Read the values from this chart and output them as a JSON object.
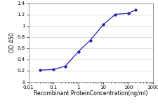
{
  "x": [
    0.03,
    0.1,
    0.3,
    1,
    3,
    10,
    30,
    100,
    200
  ],
  "y": [
    0.21,
    0.22,
    0.28,
    0.54,
    0.74,
    1.02,
    1.2,
    1.22,
    1.28
  ],
  "line_color": "#2222aa",
  "marker_color": "#2222aa",
  "marker_style": "o",
  "marker_size": 2.5,
  "marker_edge_width": 0.5,
  "line_width": 0.9,
  "xlabel": "Recombinant ProteinConcentration(ng/ml)",
  "ylabel": "OD 450",
  "xlim_log": [
    0.01,
    1000
  ],
  "ylim": [
    0,
    1.4
  ],
  "yticks": [
    0,
    0.2,
    0.4,
    0.6,
    0.8,
    1.0,
    1.2,
    1.4
  ],
  "ytick_labels": [
    "0",
    "0.2",
    "0.4",
    "0.6",
    "0.8",
    "1",
    "1.2",
    "1.4"
  ],
  "xticks": [
    0.01,
    0.1,
    1,
    10,
    100,
    1000
  ],
  "xtick_labels": [
    "0.01",
    "0.1",
    "1",
    "10",
    "100",
    "1000"
  ],
  "background_color": "#ffffff",
  "grid_color": "#d0d0d0",
  "axis_fontsize": 5.5,
  "tick_fontsize": 5.0,
  "ylabel_fontsize": 5.5
}
